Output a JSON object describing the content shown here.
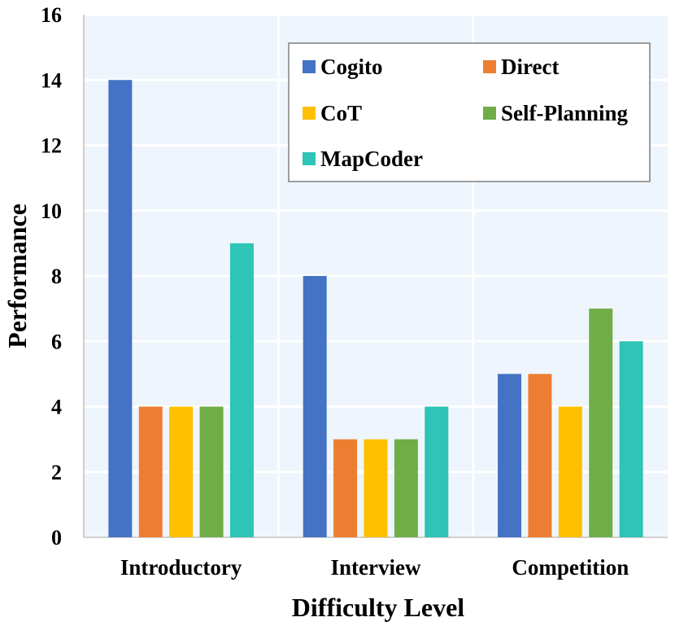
{
  "chart_data": {
    "type": "bar",
    "title": "",
    "xlabel": "Difficulty Level",
    "ylabel": "Performance",
    "ylim": [
      0,
      16
    ],
    "yticks": [
      0,
      2,
      4,
      6,
      8,
      10,
      12,
      14,
      16
    ],
    "grid": true,
    "legend_position": "top-right",
    "categories": [
      "Introductory",
      "Interview",
      "Competition"
    ],
    "series": [
      {
        "name": "Cogito",
        "color": "#4472C4",
        "values": [
          14,
          8,
          5
        ]
      },
      {
        "name": "Direct",
        "color": "#ED7D31",
        "values": [
          4,
          3,
          5
        ]
      },
      {
        "name": "CoT",
        "color": "#FFC000",
        "values": [
          4,
          3,
          4
        ]
      },
      {
        "name": "Self-Planning",
        "color": "#70AD47",
        "values": [
          4,
          3,
          7
        ]
      },
      {
        "name": "MapCoder",
        "color": "#2EC4B6",
        "values": [
          9,
          4,
          6
        ]
      }
    ],
    "plot_background": "#EEF5FC"
  }
}
